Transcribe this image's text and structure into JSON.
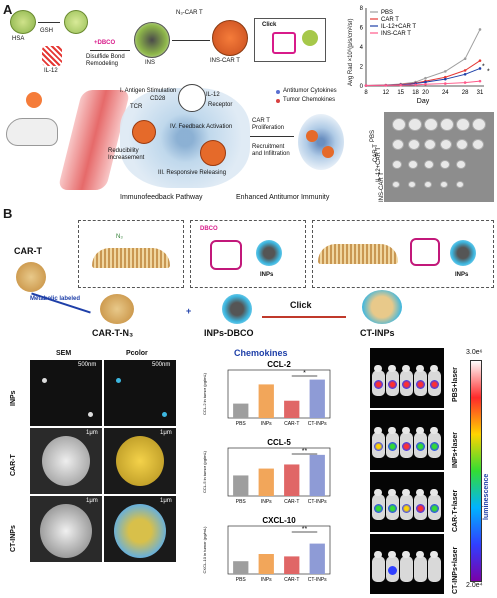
{
  "panel_a": {
    "letter": "A",
    "labels": {
      "hsa": "HSA",
      "gsh": "GSH",
      "il12": "IL-12",
      "dbco": "+DBCO",
      "disulfide": "Disulfide Bond Remodeling",
      "ins": "INS",
      "n3_cart": "N₃-CAR T",
      "ins_cart": "INS-CAR T",
      "click": "Click",
      "antigen_stim": "I. Antigen Stimulation",
      "cd28": "CD28",
      "tcr": "TCR",
      "il12_small": "IL-12",
      "receptor": "Receptor",
      "feedback": "IV. Feedback Activation",
      "reducibility": "Reducibility Increasement",
      "responsive": "III. Responsive Releasing",
      "proliferation": "CAR T Proliferation",
      "recruitment": "Recruitment and Infiltration",
      "antitumor_cyt": "Antitumor Cytokines",
      "tumor_chem": "Tumor Chemokines",
      "immunofeedback": "Immunofeedback Pathway",
      "enhanced": "Enhanced Antitumor Immunity"
    }
  },
  "growth_chart": {
    "ylabel": "Avg Rad ×10⁶(p/s/cm²/sr)",
    "xlabel": "Day",
    "yticks": [
      "8",
      "6",
      "4",
      "2",
      "0"
    ],
    "significance": [
      "*",
      "*"
    ]
  },
  "chart_data": [
    {
      "type": "line",
      "xlabel": "Day",
      "ylabel": "Avg Rad ×10⁶(p/s/cm²/sr)",
      "x": [
        8,
        12,
        15,
        18,
        20,
        24,
        28,
        31
      ],
      "ylim": [
        0,
        8
      ],
      "legend_position": "top-left",
      "series": [
        {
          "name": "PBS",
          "color": "#9e9e9e",
          "values": [
            0.05,
            0.1,
            0.2,
            0.4,
            0.8,
            1.5,
            2.8,
            5.8
          ]
        },
        {
          "name": "CAR T",
          "color": "#e53935",
          "values": [
            0.05,
            0.08,
            0.15,
            0.3,
            0.5,
            0.9,
            1.6,
            2.6
          ]
        },
        {
          "name": "IL-12+CAR T",
          "color": "#1e3fa8",
          "values": [
            0.05,
            0.07,
            0.12,
            0.25,
            0.4,
            0.7,
            1.2,
            1.8
          ]
        },
        {
          "name": "INS-CAR T",
          "color": "#ff5a8a",
          "values": [
            0.05,
            0.06,
            0.08,
            0.12,
            0.18,
            0.25,
            0.35,
            0.5
          ]
        }
      ]
    },
    {
      "type": "bar",
      "title": "CCL-2",
      "ylabel": "CCL-2 in tumor (pg/mL)",
      "categories": [
        "PBS",
        "INPs",
        "CAR-T",
        "CT-INPs"
      ],
      "values": [
        95,
        115,
        98,
        120
      ],
      "ylim": [
        80,
        130
      ],
      "significance": "*"
    },
    {
      "type": "bar",
      "title": "CCL-5",
      "ylabel": "CCL-5 in tumor (pg/mL)",
      "categories": [
        "PBS",
        "INPs",
        "CAR-T",
        "CT-INPs"
      ],
      "values": [
        150,
        200,
        230,
        300
      ],
      "ylim": [
        0,
        350
      ],
      "significance": "**"
    },
    {
      "type": "bar",
      "title": "CXCL-10",
      "ylabel": "CXCL-10 in tumor (pg/mL)",
      "categories": [
        "PBS",
        "INPs",
        "CAR-T",
        "CT-INPs"
      ],
      "values": [
        800,
        1250,
        1100,
        1900
      ],
      "ylim": [
        0,
        3000
      ],
      "significance": "**"
    }
  ],
  "tumor_photo": {
    "rows": [
      "PBS",
      "CAR T",
      "IL-12+CAR T",
      "INS-CAR T"
    ],
    "counts": [
      6,
      6,
      5,
      5
    ]
  },
  "panel_b": {
    "letter": "B",
    "cart": "CAR-T",
    "metabolic": "Metabolic labeled",
    "cart_n3": "CAR-T-N₃",
    "dbco": "DBCO",
    "inps": "INPs",
    "inps_dbco": "INPs-DBCO",
    "plus": "+",
    "click": "Click",
    "ct_inps": "CT-INPs",
    "n3": "N₃"
  },
  "em": {
    "col_sem": "SEM",
    "col_pcolor": "Pcolor",
    "rows": [
      "INPs",
      "CAR-T",
      "CT-INPs"
    ],
    "scale_top": "500nm",
    "scale_mid": "1μm",
    "scale_bot": "1μm"
  },
  "chemokines": {
    "title": "Chemokines",
    "bar_colors": [
      "#9e9e9e",
      "#f2a65a",
      "#e06666",
      "#8e9bd6"
    ]
  },
  "ivis": {
    "rows": [
      "PBS+laser",
      "INPs+laser",
      "CAR-T+laser",
      "CT-INPs+laser"
    ],
    "scale_max": "3.0e⁶",
    "scale_min": "2.0e⁴",
    "scale_label": "luminescence",
    "scale_colors": [
      "#ffffff",
      "#ff2a2a",
      "#ffd400",
      "#33dd33",
      "#00b3ff",
      "#3040ff",
      "#7a00a8"
    ]
  }
}
